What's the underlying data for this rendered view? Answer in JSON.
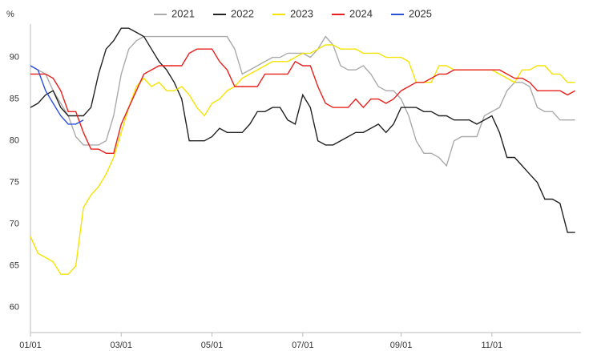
{
  "chart_data": {
    "type": "line",
    "y_label": "%",
    "categories": [
      "01/01",
      null,
      null,
      null,
      null,
      null,
      null,
      null,
      null,
      null,
      null,
      null,
      "03/01",
      null,
      null,
      null,
      null,
      null,
      null,
      null,
      null,
      null,
      null,
      null,
      "05/01",
      null,
      null,
      null,
      null,
      null,
      null,
      null,
      null,
      null,
      null,
      null,
      "07/01",
      null,
      null,
      null,
      null,
      null,
      null,
      null,
      null,
      null,
      null,
      null,
      null,
      "09/01",
      null,
      null,
      null,
      null,
      null,
      null,
      null,
      null,
      null,
      null,
      null,
      "11/01",
      null,
      null,
      null,
      null,
      null,
      null,
      null,
      null,
      null,
      null,
      null
    ],
    "ylim": [
      57,
      94
    ],
    "yticks": [
      60,
      65,
      70,
      75,
      80,
      85,
      90
    ],
    "series": [
      {
        "name": "2021",
        "color": "#aaaaaa",
        "values": [
          89,
          88.5,
          88,
          86,
          84.5,
          83,
          80.5,
          79.5,
          79.5,
          79.5,
          80,
          83,
          88,
          91,
          92,
          92.5,
          92.5,
          92.5,
          92.5,
          92.5,
          92.5,
          92.5,
          92.5,
          92.5,
          92.5,
          92.5,
          92.5,
          91,
          88,
          88.5,
          89,
          89.5,
          90,
          90,
          90.5,
          90.5,
          90.5,
          90,
          91,
          92.5,
          91.5,
          89,
          88.5,
          88.5,
          89,
          88,
          86.5,
          86,
          86,
          85,
          83,
          80,
          78.5,
          78.5,
          78,
          77,
          80,
          80.5,
          80.5,
          80.5,
          83,
          83.5,
          84,
          86,
          87,
          87,
          86.5,
          84,
          83.5,
          83.5,
          82.5,
          82.5,
          82.5
        ]
      },
      {
        "name": "2022",
        "color": "#222222",
        "values": [
          84,
          84.5,
          85.5,
          86,
          84,
          83,
          83,
          83,
          84,
          88,
          91,
          92,
          93.5,
          93.5,
          93,
          92.5,
          91,
          89.5,
          88.5,
          87,
          85,
          80,
          80,
          80,
          80.5,
          81.5,
          81,
          81,
          81,
          82,
          83.5,
          83.5,
          84,
          84,
          82.5,
          82,
          85.5,
          84,
          80,
          79.5,
          79.5,
          80,
          80.5,
          81,
          81,
          81.5,
          82,
          81,
          82,
          84,
          84,
          84,
          83.5,
          83.5,
          83,
          83,
          82.5,
          82.5,
          82.5,
          82,
          82.5,
          83,
          81,
          78,
          78,
          77,
          76,
          75,
          73,
          73,
          72.5,
          69,
          69
        ]
      },
      {
        "name": "2023",
        "color": "#f5e300",
        "values": [
          68.5,
          66.5,
          66,
          65.5,
          64,
          64,
          65,
          72,
          73.5,
          74.5,
          76,
          78,
          81,
          84,
          86.5,
          87.5,
          86.5,
          87,
          86,
          86,
          86.5,
          85.5,
          84,
          83,
          84.5,
          85,
          86,
          86.5,
          87.5,
          88,
          88.5,
          89,
          89.5,
          89.5,
          89.5,
          90,
          90.5,
          90.5,
          91,
          91.5,
          91.5,
          91,
          91,
          91,
          90.5,
          90.5,
          90.5,
          90,
          90,
          90,
          89.5,
          87,
          87,
          87,
          89,
          89,
          88.5,
          88.5,
          88.5,
          88.5,
          88.5,
          88.5,
          88,
          87.5,
          87,
          88.5,
          88.5,
          89,
          89,
          88,
          88,
          87,
          87
        ]
      },
      {
        "name": "2024",
        "color": "#e8201c",
        "values": [
          88,
          88,
          88,
          87.5,
          86,
          83.5,
          83.5,
          81,
          79,
          79,
          78.5,
          78.5,
          82,
          84,
          86,
          88,
          88.5,
          89,
          89,
          89,
          89,
          90.5,
          91,
          91,
          91,
          89.5,
          88.5,
          86.5,
          86.5,
          86.5,
          86.5,
          88,
          88,
          88,
          88,
          89.5,
          89,
          89,
          86.5,
          84.5,
          84,
          84,
          84,
          85,
          84,
          85,
          85,
          84.5,
          85,
          86,
          86.5,
          87,
          87,
          87.5,
          88,
          88,
          88.5,
          88.5,
          88.5,
          88.5,
          88.5,
          88.5,
          88.5,
          88,
          87.5,
          87.5,
          87,
          86,
          86,
          86,
          86,
          85.5,
          86
        ]
      },
      {
        "name": "2025",
        "color": "#2a4fe0",
        "values": [
          89,
          88.5,
          86,
          84.5,
          83,
          82,
          82,
          82.5,
          null,
          null,
          null,
          null,
          null,
          null,
          null,
          null,
          null,
          null,
          null,
          null,
          null,
          null,
          null,
          null,
          null,
          null,
          null,
          null,
          null,
          null,
          null,
          null,
          null,
          null,
          null,
          null,
          null,
          null,
          null,
          null,
          null,
          null,
          null,
          null,
          null,
          null,
          null,
          null,
          null,
          null,
          null,
          null,
          null,
          null,
          null,
          null,
          null,
          null,
          null,
          null,
          null,
          null,
          null,
          null,
          null,
          null,
          null,
          null,
          null,
          null,
          null,
          null,
          null
        ]
      }
    ]
  }
}
